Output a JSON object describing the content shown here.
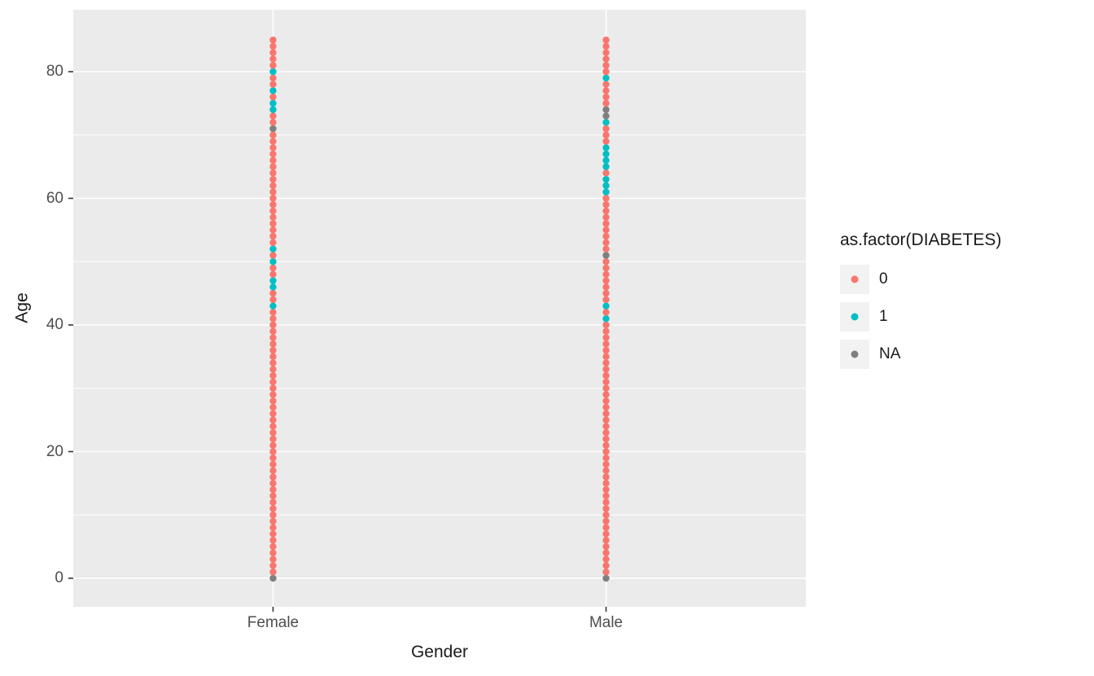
{
  "chart_data": {
    "type": "scatter",
    "title": "",
    "xlabel": "Gender",
    "ylabel": "Age",
    "categories": [
      "Female",
      "Male"
    ],
    "ylim": [
      0,
      85
    ],
    "y_major_ticks": [
      0,
      20,
      40,
      60,
      80
    ],
    "y_minor_gridlines": [
      10,
      30,
      50,
      70
    ],
    "grid": "major and minor horizontal white gridlines, vertical white gridline per category, on grey panel",
    "panel_background": "#EBEBEB",
    "gridline_color": "#FFFFFF",
    "tick_mark_color": "#333333",
    "tick_label_color": "#4D4D4D",
    "legend": {
      "title": "as.factor(DIABETES)",
      "position": "right",
      "key_background": "#F2F2F2",
      "entries": [
        {
          "label": "0",
          "color": "#F8766D"
        },
        {
          "label": "1",
          "color": "#00BFC4"
        },
        {
          "label": "NA",
          "color": "#7F7F7F"
        }
      ]
    },
    "points": {
      "description": "one point per integer Age from 0 to 85 in each Gender column; group is '0' unless the age is listed under group_1_ages or group_NA_ages",
      "Female": {
        "age_min": 0,
        "age_max": 85,
        "default_group": "0",
        "group_1_ages": [
          43,
          46,
          47,
          50,
          52,
          74,
          75,
          77,
          80
        ],
        "group_NA_ages": [
          0,
          71
        ]
      },
      "Male": {
        "age_min": 0,
        "age_max": 85,
        "default_group": "0",
        "group_1_ages": [
          41,
          43,
          61,
          62,
          63,
          65,
          66,
          67,
          68,
          72,
          79
        ],
        "group_NA_ages": [
          0,
          51,
          73,
          74
        ]
      }
    }
  }
}
